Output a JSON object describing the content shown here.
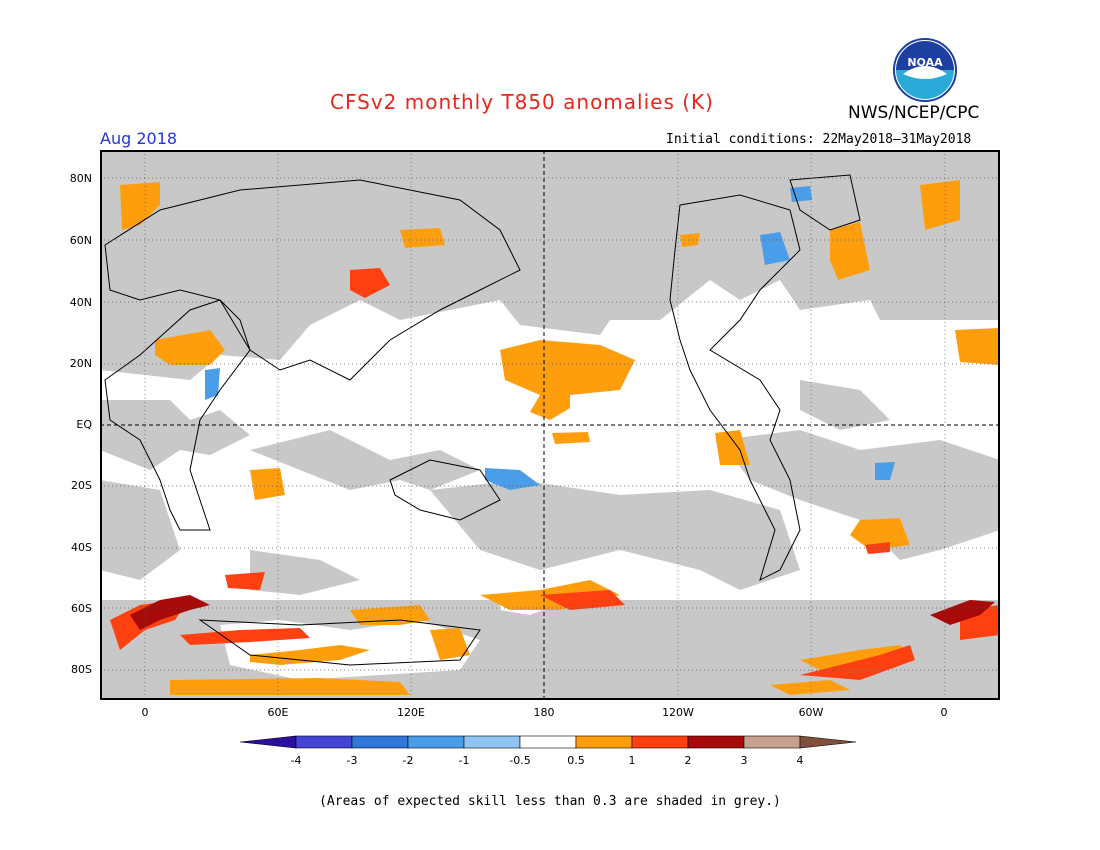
{
  "header": {
    "title": "CFSv2 monthly T850 anomalies (K)",
    "agency": "NWS/NCEP/CPC",
    "month": "Aug 2018",
    "initial_conditions": "Initial conditions: 22May2018–31May2018",
    "logo_text": "NOAA"
  },
  "map": {
    "lat_labels": [
      "80N",
      "60N",
      "40N",
      "20N",
      "EQ",
      "20S",
      "40S",
      "60S",
      "80S"
    ],
    "lon_labels": [
      "0",
      "60E",
      "120E",
      "180",
      "120W",
      "60W",
      "0"
    ],
    "skill_mask_color": "#c8c8c8",
    "background_color": "#ffffff"
  },
  "legend": {
    "ticks": [
      "-4",
      "-3",
      "-2",
      "-1",
      "-0.5",
      "0.5",
      "1",
      "2",
      "3",
      "4"
    ],
    "colors": [
      "#2a0fa0",
      "#4444d6",
      "#2f77d8",
      "#4a9ee9",
      "#8fc5f2",
      "#ffffff",
      "#ff9e0c",
      "#ff4010",
      "#a80a0a",
      "#c8a090",
      "#80503c"
    ]
  },
  "footnote": "(Areas of expected skill less than 0.3 are shaded in grey.)"
}
